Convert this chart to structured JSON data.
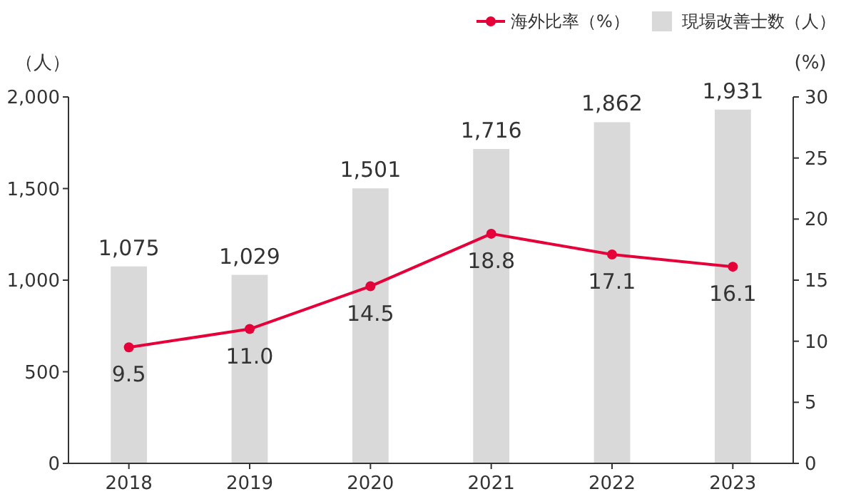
{
  "chart_data": {
    "type": "bar",
    "categories": [
      "2018",
      "2019",
      "2020",
      "2021",
      "2022",
      "2023"
    ],
    "series": [
      {
        "name": "海外比率（%）",
        "type": "line",
        "axis": "y2",
        "color": "#e60039",
        "values": [
          9.5,
          11.0,
          14.5,
          18.8,
          17.1,
          16.1
        ],
        "value_labels": [
          "9.5",
          "11.0",
          "14.5",
          "18.8",
          "17.1",
          "16.1"
        ]
      },
      {
        "name": "現場改善士数（人）",
        "color": "#d9d9d9",
        "values": [
          1075,
          1029,
          1501,
          1716,
          1862,
          1931
        ],
        "value_labels": [
          "1,075",
          "1,029",
          "1,501",
          "1,716",
          "1,862",
          "1,931"
        ]
      }
    ],
    "ylabel": "（人）",
    "y2label": "(%)",
    "ylim": [
      0,
      2000
    ],
    "yticks": [
      0,
      500,
      {
        "value": 1000,
        "label": "1,000"
      },
      {
        "value": 1500,
        "label": "1,500"
      },
      {
        "value": 2000,
        "label": "2,000"
      }
    ],
    "y2lim": [
      0,
      30
    ],
    "y2ticks": [
      0,
      5,
      10,
      15,
      20,
      25,
      30
    ],
    "legend": "top right",
    "grid": false,
    "marker": "circle",
    "line_style": "solid"
  }
}
